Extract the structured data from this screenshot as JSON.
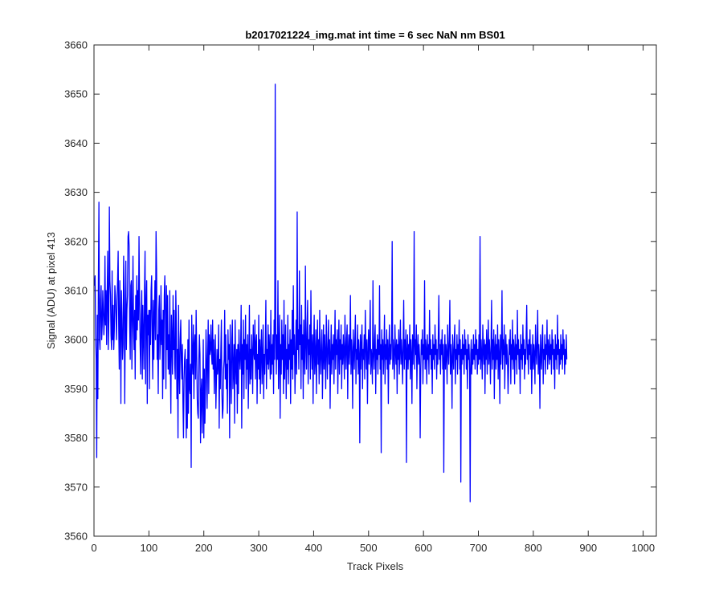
{
  "chart_data": {
    "type": "line",
    "title": "b2017021224_img.mat int time = 6 sec  NaN nm BS01",
    "xlabel": "Track Pixels",
    "ylabel": "Signal (ADU) at pixel 413",
    "xlim": [
      0,
      1024
    ],
    "ylim": [
      3560,
      3660
    ],
    "xticks": [
      0,
      100,
      200,
      300,
      400,
      500,
      600,
      700,
      800,
      900,
      1000
    ],
    "yticks": [
      3560,
      3570,
      3580,
      3590,
      3600,
      3610,
      3620,
      3630,
      3640,
      3650,
      3660
    ],
    "grid": false,
    "series_color": "#0000ff",
    "series": [
      {
        "x_start": 1,
        "x_step": 1,
        "values": [
          3611,
          3613,
          3601,
          3596,
          3576,
          3605,
          3588,
          3612,
          3628,
          3600,
          3598,
          3608,
          3611,
          3600,
          3603,
          3610,
          3606,
          3601,
          3604,
          3617,
          3603,
          3610,
          3599,
          3609,
          3618,
          3598,
          3604,
          3627,
          3612,
          3609,
          3601,
          3598,
          3614,
          3600,
          3607,
          3598,
          3602,
          3611,
          3609,
          3605,
          3600,
          3608,
          3612,
          3618,
          3603,
          3594,
          3612,
          3605,
          3587,
          3610,
          3604,
          3596,
          3599,
          3617,
          3609,
          3587,
          3603,
          3616,
          3598,
          3606,
          3609,
          3621,
          3622,
          3619,
          3603,
          3596,
          3611,
          3612,
          3594,
          3604,
          3617,
          3603,
          3598,
          3606,
          3592,
          3609,
          3600,
          3613,
          3602,
          3610,
          3604,
          3621,
          3608,
          3599,
          3593,
          3605,
          3610,
          3592,
          3607,
          3601,
          3594,
          3610,
          3618,
          3591,
          3607,
          3612,
          3587,
          3605,
          3601,
          3606,
          3590,
          3606,
          3599,
          3610,
          3613,
          3601,
          3592,
          3608,
          3596,
          3605,
          3612,
          3600,
          3622,
          3614,
          3596,
          3601,
          3589,
          3606,
          3609,
          3596,
          3600,
          3611,
          3599,
          3604,
          3588,
          3606,
          3592,
          3609,
          3613,
          3605,
          3590,
          3611,
          3598,
          3609,
          3594,
          3601,
          3593,
          3610,
          3596,
          3585,
          3605,
          3600,
          3593,
          3609,
          3598,
          3606,
          3595,
          3592,
          3610,
          3603,
          3588,
          3598,
          3580,
          3607,
          3594,
          3589,
          3600,
          3604,
          3596,
          3592,
          3599,
          3587,
          3580,
          3592,
          3596,
          3598,
          3591,
          3580,
          3596,
          3582,
          3600,
          3585,
          3604,
          3590,
          3589,
          3595,
          3574,
          3605,
          3596,
          3593,
          3603,
          3588,
          3599,
          3601,
          3592,
          3606,
          3598,
          3588,
          3585,
          3584,
          3596,
          3601,
          3597,
          3579,
          3589,
          3592,
          3581,
          3588,
          3600,
          3580,
          3594,
          3583,
          3590,
          3602,
          3596,
          3586,
          3596,
          3604,
          3589,
          3601,
          3597,
          3598,
          3603,
          3597,
          3595,
          3604,
          3594,
          3600,
          3589,
          3596,
          3601,
          3586,
          3592,
          3598,
          3593,
          3595,
          3603,
          3582,
          3596,
          3590,
          3598,
          3604,
          3589,
          3584,
          3586,
          3594,
          3596,
          3606,
          3592,
          3601,
          3590,
          3595,
          3585,
          3602,
          3596,
          3599,
          3580,
          3603,
          3593,
          3587,
          3600,
          3604,
          3590,
          3594,
          3599,
          3583,
          3604,
          3595,
          3591,
          3598,
          3585,
          3599,
          3589,
          3602,
          3597,
          3594,
          3598,
          3607,
          3582,
          3599,
          3593,
          3604,
          3588,
          3600,
          3596,
          3605,
          3590,
          3599,
          3594,
          3601,
          3586,
          3595,
          3607,
          3591,
          3598,
          3592,
          3601,
          3597,
          3589,
          3603,
          3598,
          3596,
          3604,
          3592,
          3599,
          3601,
          3587,
          3597,
          3594,
          3605,
          3592,
          3600,
          3589,
          3598,
          3602,
          3591,
          3596,
          3603,
          3588,
          3597,
          3593,
          3599,
          3608,
          3590,
          3598,
          3595,
          3603,
          3594,
          3601,
          3597,
          3592,
          3606,
          3593,
          3599,
          3595,
          3601,
          3589,
          3604,
          3596,
          3652,
          3602,
          3593,
          3601,
          3596,
          3612,
          3590,
          3598,
          3605,
          3584,
          3599,
          3593,
          3604,
          3596,
          3601,
          3589,
          3608,
          3592,
          3597,
          3603,
          3588,
          3598,
          3594,
          3605,
          3591,
          3599,
          3596,
          3602,
          3587,
          3600,
          3594,
          3606,
          3592,
          3611,
          3597,
          3601,
          3589,
          3596,
          3604,
          3593,
          3626,
          3598,
          3602,
          3594,
          3614,
          3599,
          3603,
          3590,
          3607,
          3596,
          3601,
          3588,
          3604,
          3597,
          3593,
          3615,
          3599,
          3594,
          3602,
          3608,
          3591,
          3600,
          3597,
          3603,
          3592,
          3610,
          3598,
          3594,
          3601,
          3587,
          3599,
          3605,
          3593,
          3596,
          3602,
          3589,
          3598,
          3604,
          3595,
          3600,
          3591,
          3606,
          3597,
          3593,
          3599,
          3602,
          3588,
          3596,
          3603,
          3594,
          3601,
          3597,
          3590,
          3605,
          3599,
          3592,
          3598,
          3604,
          3595,
          3600,
          3586,
          3597,
          3603,
          3593,
          3599,
          3596,
          3601,
          3591,
          3598,
          3606,
          3594,
          3600,
          3597,
          3602,
          3589,
          3598,
          3604,
          3593,
          3600,
          3596,
          3603,
          3590,
          3599,
          3595,
          3601,
          3597,
          3592,
          3605,
          3598,
          3594,
          3600,
          3603,
          3588,
          3598,
          3601,
          3595,
          3599,
          3609,
          3593,
          3600,
          3597,
          3586,
          3602,
          3598,
          3594,
          3600,
          3605,
          3591,
          3598,
          3596,
          3603,
          3593,
          3600,
          3597,
          3579,
          3601,
          3594,
          3599,
          3603,
          3590,
          3598,
          3596,
          3601,
          3592,
          3606,
          3599,
          3594,
          3600,
          3587,
          3597,
          3602,
          3595,
          3599,
          3608,
          3593,
          3598,
          3596,
          3591,
          3612,
          3597,
          3594,
          3600,
          3603,
          3589,
          3598,
          3596,
          3601,
          3593,
          3600,
          3597,
          3611,
          3594,
          3599,
          3577,
          3602,
          3596,
          3600,
          3593,
          3598,
          3605,
          3591,
          3599,
          3596,
          3602,
          3594,
          3600,
          3587,
          3598,
          3603,
          3595,
          3599,
          3596,
          3601,
          3620,
          3594,
          3600,
          3597,
          3592,
          3603,
          3598,
          3595,
          3600,
          3589,
          3599,
          3596,
          3602,
          3593,
          3598,
          3604,
          3595,
          3600,
          3597,
          3591,
          3599,
          3608,
          3594,
          3600,
          3596,
          3602,
          3575,
          3598,
          3601,
          3594,
          3599,
          3596,
          3603,
          3592,
          3600,
          3597,
          3587,
          3601,
          3595,
          3599,
          3622,
          3594,
          3600,
          3597,
          3603,
          3590,
          3598,
          3601,
          3595,
          3599,
          3596,
          3580,
          3594,
          3600,
          3597,
          3602,
          3591,
          3599,
          3596,
          3612,
          3594,
          3600,
          3598,
          3591,
          3601,
          3596,
          3599,
          3593,
          3606,
          3597,
          3600,
          3594,
          3598,
          3589,
          3601,
          3596,
          3599,
          3594,
          3603,
          3597,
          3600,
          3592,
          3598,
          3595,
          3601,
          3609,
          3596,
          3599,
          3593,
          3600,
          3597,
          3602,
          3594,
          3599,
          3573,
          3596,
          3601,
          3594,
          3599,
          3597,
          3591,
          3603,
          3598,
          3595,
          3600,
          3608,
          3593,
          3599,
          3596,
          3586,
          3601,
          3597,
          3594,
          3600,
          3603,
          3591,
          3598,
          3596,
          3601,
          3593,
          3599,
          3597,
          3604,
          3594,
          3600,
          3571,
          3598,
          3595,
          3601,
          3596,
          3599,
          3593,
          3602,
          3597,
          3600,
          3594,
          3598,
          3590,
          3601,
          3596,
          3599,
          3594,
          3567,
          3597,
          3600,
          3593,
          3598,
          3595,
          3601,
          3596,
          3599,
          3594,
          3602,
          3597,
          3600,
          3593,
          3598,
          3595,
          3601,
          3596,
          3621,
          3594,
          3600,
          3597,
          3592,
          3603,
          3598,
          3595,
          3600,
          3589,
          3599,
          3596,
          3602,
          3593,
          3598,
          3604,
          3595,
          3600,
          3597,
          3591,
          3599,
          3608,
          3594,
          3600,
          3596,
          3602,
          3588,
          3598,
          3601,
          3594,
          3599,
          3596,
          3603,
          3592,
          3600,
          3597,
          3587,
          3601,
          3595,
          3599,
          3610,
          3594,
          3600,
          3597,
          3603,
          3590,
          3598,
          3601,
          3595,
          3599,
          3596,
          3589,
          3594,
          3600,
          3597,
          3602,
          3591,
          3599,
          3596,
          3604,
          3594,
          3600,
          3598,
          3591,
          3601,
          3596,
          3599,
          3593,
          3606,
          3597,
          3600,
          3594,
          3598,
          3589,
          3601,
          3596,
          3599,
          3594,
          3603,
          3597,
          3600,
          3592,
          3598,
          3595,
          3601,
          3607,
          3596,
          3599,
          3593,
          3600,
          3597,
          3602,
          3594,
          3599,
          3589,
          3596,
          3601,
          3594,
          3599,
          3597,
          3591,
          3603,
          3598,
          3595,
          3600,
          3606,
          3593,
          3599,
          3596,
          3586,
          3601,
          3597,
          3594,
          3600,
          3603,
          3591,
          3598,
          3596,
          3601,
          3593,
          3599,
          3597,
          3604,
          3594,
          3600,
          3598,
          3595,
          3601,
          3596,
          3599,
          3593,
          3602,
          3597,
          3600,
          3594,
          3598,
          3590,
          3601,
          3596,
          3599,
          3594,
          3605,
          3597,
          3600,
          3593,
          3598,
          3595,
          3601,
          3596,
          3599,
          3594,
          3602,
          3597,
          3600,
          3593,
          3598,
          3595,
          3601,
          3596
        ]
      }
    ]
  }
}
